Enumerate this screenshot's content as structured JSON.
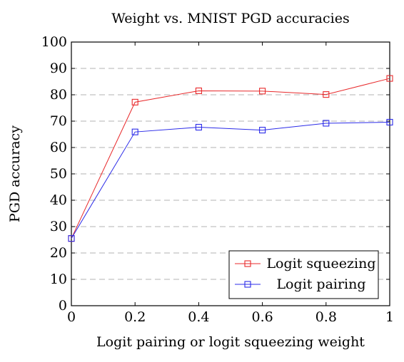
{
  "chart_data": {
    "type": "line",
    "title": "Weight vs. MNIST PGD accuracies",
    "xlabel": "Logit pairing or logit squeezing weight",
    "ylabel": "PGD accuracy",
    "xlim": [
      0,
      1
    ],
    "ylim": [
      0,
      100
    ],
    "x_ticks": [
      0,
      0.2,
      0.4,
      0.6,
      0.8,
      1
    ],
    "x_tick_labels": [
      "0",
      "0.2",
      "0.4",
      "0.6",
      "0.8",
      "1"
    ],
    "y_ticks": [
      0,
      10,
      20,
      30,
      40,
      50,
      60,
      70,
      80,
      90,
      100
    ],
    "y_tick_labels": [
      "0",
      "10",
      "20",
      "30",
      "40",
      "50",
      "60",
      "70",
      "80",
      "90",
      "100"
    ],
    "grid": "horizontal dashed",
    "legend_position": "bottom-right",
    "marker": "square",
    "series": [
      {
        "name": "Logit squeezing",
        "color": "#e8292b",
        "x": [
          0,
          0.2,
          0.4,
          0.6,
          0.8,
          1
        ],
        "y": [
          25.5,
          77.2,
          81.5,
          81.4,
          80.1,
          86.2
        ]
      },
      {
        "name": "Logit pairing",
        "color": "#2b2be8",
        "x": [
          0,
          0.2,
          0.4,
          0.6,
          0.8,
          1
        ],
        "y": [
          25.5,
          65.9,
          67.7,
          66.6,
          69.2,
          69.6
        ]
      }
    ]
  }
}
